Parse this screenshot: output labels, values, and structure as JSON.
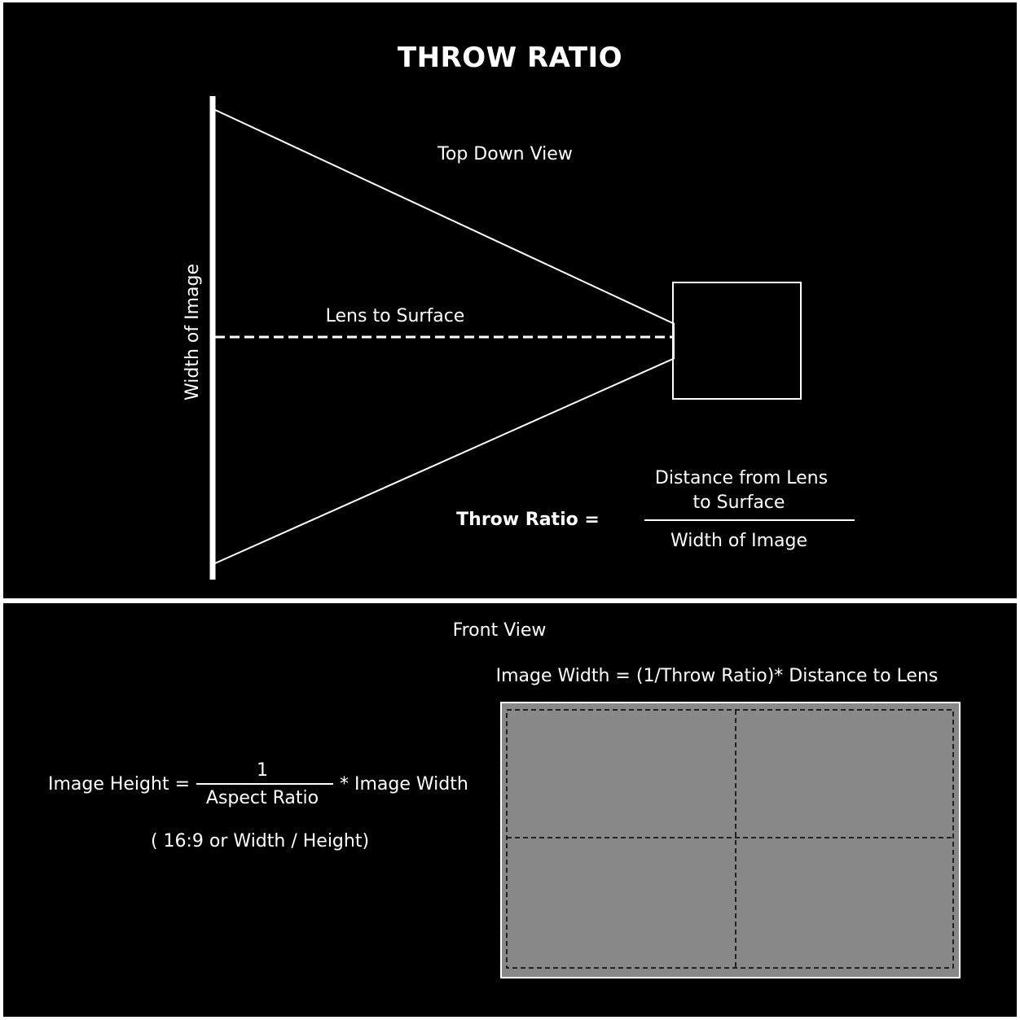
{
  "title": "THROW RATIO",
  "top_view": {
    "label": "Top Down View",
    "width_label": "Width of Image",
    "lens_label": "Lens to Surface",
    "formula": {
      "lhs": "Throw Ratio =",
      "numerator_line1": "Distance from Lens",
      "numerator_line2": "to Surface",
      "denominator": "Width of Image"
    }
  },
  "front_view": {
    "label": "Front View",
    "width_formula": "Image Width = (1/Throw Ratio)* Distance to Lens",
    "height_formula": {
      "lhs": "Image Height =",
      "numerator": "1",
      "denominator": "Aspect Ratio",
      "rhs": "* Image Width",
      "note": "( 16:9 or Width / Height)"
    }
  },
  "colors": {
    "background": "#000000",
    "foreground": "#ffffff",
    "screen_fill": "#888888",
    "frame": "#ffffff"
  }
}
